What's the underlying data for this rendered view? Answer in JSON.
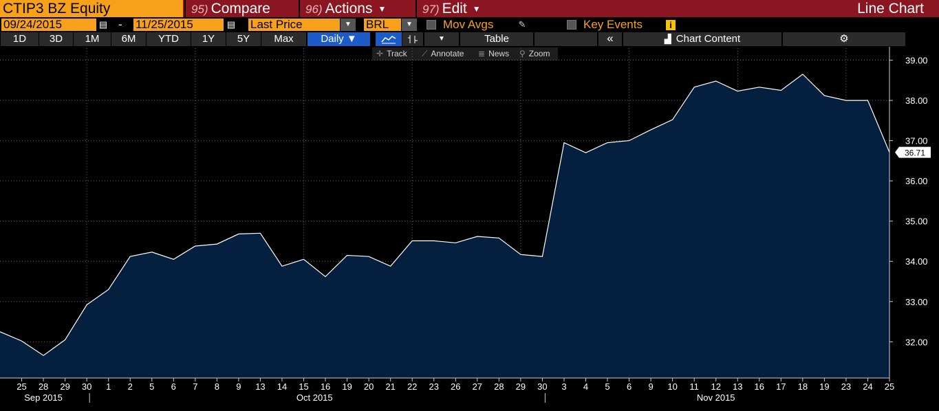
{
  "header": {
    "ticker": "CTIP3 BZ Equity",
    "menus": [
      {
        "num": "95)",
        "label": "Compare",
        "caret": false
      },
      {
        "num": "96)",
        "label": "Actions",
        "caret": true
      },
      {
        "num": "97)",
        "label": "Edit",
        "caret": true
      }
    ],
    "chart_type": "Line Chart"
  },
  "range": {
    "start": "09/24/2015",
    "separator": "-",
    "end": "11/25/2015",
    "price_field": "Last Price",
    "currency": "BRL",
    "mov_avgs": "Mov Avgs",
    "key_events": "Key Events",
    "info_glyph": "i"
  },
  "toolbar": {
    "periods": [
      "1D",
      "3D",
      "1M",
      "6M",
      "YTD",
      "1Y",
      "5Y",
      "Max"
    ],
    "frequency": "Daily ▼",
    "table_label": "Table",
    "collapse": "«",
    "chart_content": "Chart Content"
  },
  "subtools": {
    "track": "Track",
    "annotate": "Annotate",
    "news": "News",
    "zoom": "Zoom"
  },
  "colors": {
    "header_bg": "#8b1520",
    "accent": "#f7a11a",
    "area_fill": "#05203f",
    "line": "#ffffff",
    "active_btn": "#1c5cc8"
  },
  "chart_data": {
    "type": "area",
    "y_ticks": [
      "32.00",
      "33.00",
      "34.00",
      "35.00",
      "36.00",
      "37.00",
      "38.00",
      "39.00"
    ],
    "ylim": [
      31.1,
      39.3
    ],
    "last_value_label": "36.71",
    "x_labels": [
      "25",
      "28",
      "29",
      "30",
      "1",
      "2",
      "5",
      "6",
      "7",
      "8",
      "9",
      "13",
      "14",
      "15",
      "16",
      "19",
      "20",
      "21",
      "22",
      "23",
      "26",
      "27",
      "28",
      "29",
      "30",
      "3",
      "4",
      "5",
      "6",
      "9",
      "10",
      "11",
      "12",
      "13",
      "16",
      "17",
      "18",
      "19",
      "23",
      "24",
      "25"
    ],
    "month_labels": [
      "Sep 2015",
      "Oct 2015",
      "Nov 2015"
    ],
    "series": [
      {
        "values": [
          32.25,
          32.02,
          31.66,
          32.05,
          32.92,
          33.3,
          34.12,
          34.23,
          34.05,
          34.38,
          34.43,
          34.68,
          34.7,
          33.88,
          34.05,
          33.62,
          34.15,
          34.12,
          33.88,
          34.51,
          34.51,
          34.46,
          34.62,
          34.58,
          34.17,
          34.12,
          36.95,
          36.7,
          36.95,
          37.0,
          37.27,
          37.52,
          38.33,
          38.48,
          38.23,
          38.33,
          38.25,
          38.65,
          38.12,
          38.0,
          38.0,
          36.71
        ]
      }
    ]
  }
}
